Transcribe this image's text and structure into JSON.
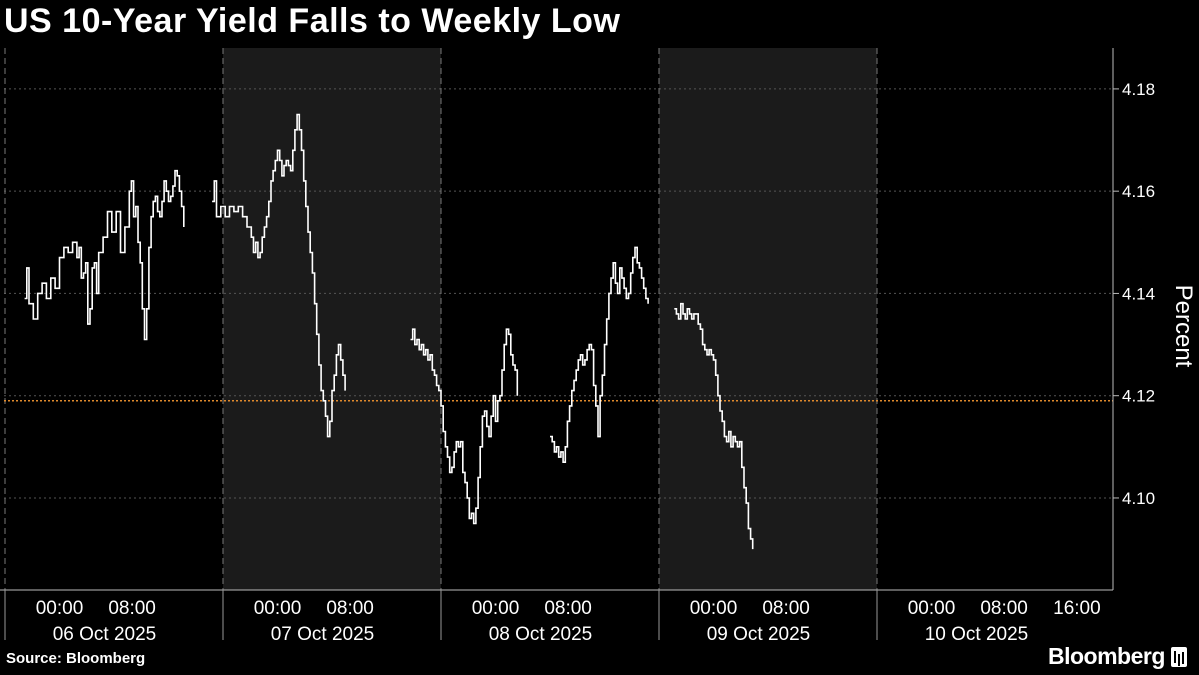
{
  "title": "US 10-Year Yield Falls to Weekly Low",
  "source": "Source: Bloomberg",
  "brand": "Bloomberg",
  "colors": {
    "background": "#000000",
    "shade": "#1b1b1b",
    "line": "#ffffff",
    "reference_line": "#e08a2c",
    "grid": "#555555",
    "text": "#ffffff"
  },
  "chart_data": {
    "type": "line",
    "title": "US 10-Year Yield Falls to Weekly Low",
    "ylabel": "Percent",
    "ylim": [
      4.082,
      4.188
    ],
    "y_ticks": [
      4.1,
      4.12,
      4.14,
      4.16,
      4.18
    ],
    "y_tick_labels": [
      "4.10",
      "4.12",
      "4.14",
      "4.16",
      "4.18"
    ],
    "reference_line": 4.119,
    "grid": true,
    "x_ticks": [
      {
        "day": 0,
        "label": "00:00",
        "date": "06 Oct 2025"
      },
      {
        "day": 0.333,
        "label": "08:00"
      },
      {
        "day": 1,
        "label": "00:00",
        "date": "07 Oct 2025"
      },
      {
        "day": 1.333,
        "label": "08:00"
      },
      {
        "day": 2,
        "label": "00:00",
        "date": "08 Oct 2025"
      },
      {
        "day": 2.333,
        "label": "08:00"
      },
      {
        "day": 3,
        "label": "00:00",
        "date": "09 Oct 2025"
      },
      {
        "day": 3.333,
        "label": "08:00"
      },
      {
        "day": 4,
        "label": "00:00",
        "date": "10 Oct 2025"
      },
      {
        "day": 4.333,
        "label": "08:00"
      },
      {
        "day": 4.667,
        "label": "16:00"
      }
    ],
    "shaded_days": [
      1,
      3
    ],
    "series": [
      {
        "segments": [
          [
            [
              -0.16,
              4.139
            ],
            [
              -0.15,
              4.145
            ],
            [
              -0.14,
              4.138
            ],
            [
              -0.12,
              4.135
            ],
            [
              -0.1,
              4.14
            ],
            [
              -0.08,
              4.142
            ],
            [
              -0.06,
              4.139
            ],
            [
              -0.04,
              4.143
            ],
            [
              -0.02,
              4.141
            ],
            [
              0.0,
              4.147
            ],
            [
              0.02,
              4.149
            ],
            [
              0.04,
              4.148
            ],
            [
              0.06,
              4.15
            ],
            [
              0.08,
              4.147
            ],
            [
              0.09,
              4.149
            ],
            [
              0.1,
              4.143
            ],
            [
              0.11,
              4.144
            ],
            [
              0.12,
              4.146
            ],
            [
              0.13,
              4.134
            ],
            [
              0.14,
              4.137
            ],
            [
              0.15,
              4.145
            ],
            [
              0.16,
              4.146
            ],
            [
              0.17,
              4.14
            ],
            [
              0.18,
              4.148
            ],
            [
              0.2,
              4.151
            ],
            [
              0.22,
              4.156
            ],
            [
              0.24,
              4.152
            ],
            [
              0.26,
              4.156
            ],
            [
              0.28,
              4.148
            ],
            [
              0.3,
              4.153
            ],
            [
              0.32,
              4.16
            ],
            [
              0.33,
              4.162
            ],
            [
              0.34,
              4.155
            ],
            [
              0.35,
              4.157
            ],
            [
              0.36,
              4.15
            ],
            [
              0.37,
              4.146
            ],
            [
              0.38,
              4.137
            ],
            [
              0.39,
              4.131
            ],
            [
              0.4,
              4.137
            ],
            [
              0.41,
              4.149
            ],
            [
              0.42,
              4.155
            ],
            [
              0.43,
              4.158
            ],
            [
              0.44,
              4.159
            ],
            [
              0.45,
              4.156
            ],
            [
              0.46,
              4.155
            ],
            [
              0.47,
              4.158
            ],
            [
              0.48,
              4.162
            ],
            [
              0.49,
              4.16
            ],
            [
              0.5,
              4.158
            ],
            [
              0.51,
              4.159
            ],
            [
              0.52,
              4.161
            ],
            [
              0.53,
              4.164
            ],
            [
              0.54,
              4.163
            ],
            [
              0.55,
              4.16
            ],
            [
              0.56,
              4.157
            ],
            [
              0.57,
              4.153
            ]
          ],
          [
            [
              0.7,
              4.158
            ],
            [
              0.71,
              4.162
            ],
            [
              0.72,
              4.155
            ],
            [
              0.74,
              4.157
            ],
            [
              0.76,
              4.155
            ],
            [
              0.78,
              4.157
            ],
            [
              0.8,
              4.156
            ],
            [
              0.82,
              4.157
            ],
            [
              0.84,
              4.155
            ],
            [
              0.86,
              4.153
            ],
            [
              0.88,
              4.151
            ],
            [
              0.89,
              4.148
            ],
            [
              0.9,
              4.15
            ],
            [
              0.91,
              4.147
            ],
            [
              0.92,
              4.148
            ],
            [
              0.93,
              4.151
            ],
            [
              0.94,
              4.153
            ],
            [
              0.95,
              4.155
            ],
            [
              0.96,
              4.158
            ],
            [
              0.97,
              4.162
            ],
            [
              0.98,
              4.164
            ],
            [
              0.99,
              4.166
            ],
            [
              1.0,
              4.168
            ],
            [
              1.01,
              4.166
            ],
            [
              1.02,
              4.163
            ],
            [
              1.03,
              4.165
            ],
            [
              1.04,
              4.166
            ],
            [
              1.05,
              4.165
            ],
            [
              1.06,
              4.164
            ],
            [
              1.07,
              4.168
            ],
            [
              1.08,
              4.172
            ],
            [
              1.09,
              4.175
            ],
            [
              1.1,
              4.172
            ],
            [
              1.11,
              4.168
            ],
            [
              1.12,
              4.162
            ],
            [
              1.13,
              4.157
            ],
            [
              1.14,
              4.152
            ],
            [
              1.15,
              4.148
            ],
            [
              1.16,
              4.144
            ],
            [
              1.17,
              4.138
            ],
            [
              1.18,
              4.132
            ],
            [
              1.19,
              4.126
            ],
            [
              1.2,
              4.121
            ],
            [
              1.21,
              4.119
            ],
            [
              1.22,
              4.116
            ],
            [
              1.23,
              4.112
            ],
            [
              1.24,
              4.115
            ],
            [
              1.25,
              4.121
            ],
            [
              1.26,
              4.124
            ],
            [
              1.27,
              4.128
            ],
            [
              1.28,
              4.13
            ],
            [
              1.29,
              4.127
            ],
            [
              1.3,
              4.124
            ],
            [
              1.31,
              4.121
            ]
          ],
          [
            [
              1.61,
              4.131
            ],
            [
              1.62,
              4.133
            ],
            [
              1.63,
              4.13
            ],
            [
              1.64,
              4.131
            ],
            [
              1.65,
              4.129
            ],
            [
              1.66,
              4.13
            ],
            [
              1.67,
              4.128
            ],
            [
              1.68,
              4.129
            ],
            [
              1.69,
              4.127
            ],
            [
              1.7,
              4.128
            ],
            [
              1.71,
              4.125
            ],
            [
              1.72,
              4.124
            ],
            [
              1.73,
              4.122
            ],
            [
              1.74,
              4.121
            ],
            [
              1.75,
              4.118
            ],
            [
              1.76,
              4.113
            ],
            [
              1.77,
              4.11
            ],
            [
              1.78,
              4.108
            ],
            [
              1.79,
              4.105
            ],
            [
              1.8,
              4.106
            ],
            [
              1.81,
              4.109
            ],
            [
              1.82,
              4.111
            ],
            [
              1.83,
              4.11
            ],
            [
              1.84,
              4.111
            ],
            [
              1.85,
              4.105
            ],
            [
              1.86,
              4.103
            ],
            [
              1.87,
              4.1
            ],
            [
              1.88,
              4.096
            ],
            [
              1.89,
              4.097
            ],
            [
              1.9,
              4.095
            ],
            [
              1.91,
              4.098
            ],
            [
              1.92,
              4.104
            ],
            [
              1.93,
              4.11
            ],
            [
              1.94,
              4.116
            ],
            [
              1.95,
              4.117
            ],
            [
              1.96,
              4.114
            ],
            [
              1.97,
              4.112
            ],
            [
              1.98,
              4.116
            ],
            [
              1.99,
              4.12
            ],
            [
              2.0,
              4.115
            ],
            [
              2.01,
              4.119
            ],
            [
              2.02,
              4.12
            ],
            [
              2.03,
              4.125
            ],
            [
              2.04,
              4.13
            ],
            [
              2.05,
              4.133
            ],
            [
              2.06,
              4.132
            ],
            [
              2.07,
              4.128
            ],
            [
              2.08,
              4.126
            ],
            [
              2.09,
              4.125
            ],
            [
              2.1,
              4.12
            ]
          ],
          [
            [
              2.25,
              4.112
            ],
            [
              2.26,
              4.111
            ],
            [
              2.27,
              4.109
            ],
            [
              2.28,
              4.11
            ],
            [
              2.29,
              4.108
            ],
            [
              2.3,
              4.109
            ],
            [
              2.31,
              4.107
            ],
            [
              2.32,
              4.11
            ],
            [
              2.33,
              4.115
            ],
            [
              2.34,
              4.118
            ],
            [
              2.35,
              4.121
            ],
            [
              2.36,
              4.123
            ],
            [
              2.37,
              4.125
            ],
            [
              2.38,
              4.127
            ],
            [
              2.39,
              4.128
            ],
            [
              2.4,
              4.126
            ],
            [
              2.41,
              4.127
            ],
            [
              2.42,
              4.129
            ],
            [
              2.43,
              4.13
            ],
            [
              2.44,
              4.129
            ],
            [
              2.45,
              4.122
            ],
            [
              2.46,
              4.118
            ],
            [
              2.47,
              4.112
            ],
            [
              2.48,
              4.12
            ],
            [
              2.49,
              4.124
            ],
            [
              2.5,
              4.13
            ],
            [
              2.51,
              4.135
            ],
            [
              2.52,
              4.14
            ],
            [
              2.53,
              4.143
            ],
            [
              2.54,
              4.146
            ],
            [
              2.55,
              4.142
            ],
            [
              2.56,
              4.14
            ],
            [
              2.57,
              4.145
            ],
            [
              2.58,
              4.143
            ],
            [
              2.59,
              4.141
            ],
            [
              2.6,
              4.139
            ],
            [
              2.61,
              4.14
            ],
            [
              2.62,
              4.144
            ],
            [
              2.63,
              4.147
            ],
            [
              2.64,
              4.149
            ],
            [
              2.65,
              4.146
            ],
            [
              2.66,
              4.145
            ],
            [
              2.67,
              4.143
            ],
            [
              2.68,
              4.141
            ],
            [
              2.69,
              4.139
            ],
            [
              2.7,
              4.138
            ]
          ],
          [
            [
              2.82,
              4.137
            ],
            [
              2.83,
              4.136
            ],
            [
              2.84,
              4.135
            ],
            [
              2.85,
              4.138
            ],
            [
              2.86,
              4.136
            ],
            [
              2.87,
              4.135
            ],
            [
              2.88,
              4.137
            ],
            [
              2.89,
              4.136
            ],
            [
              2.9,
              4.135
            ],
            [
              2.91,
              4.136
            ],
            [
              2.92,
              4.136
            ],
            [
              2.93,
              4.134
            ],
            [
              2.94,
              4.133
            ],
            [
              2.95,
              4.13
            ],
            [
              2.96,
              4.129
            ],
            [
              2.97,
              4.128
            ],
            [
              2.98,
              4.129
            ],
            [
              2.99,
              4.128
            ],
            [
              3.0,
              4.127
            ],
            [
              3.01,
              4.124
            ],
            [
              3.02,
              4.12
            ],
            [
              3.03,
              4.117
            ],
            [
              3.04,
              4.115
            ],
            [
              3.05,
              4.112
            ],
            [
              3.06,
              4.111
            ],
            [
              3.07,
              4.113
            ],
            [
              3.08,
              4.11
            ],
            [
              3.09,
              4.112
            ],
            [
              3.1,
              4.111
            ],
            [
              3.11,
              4.11
            ],
            [
              3.12,
              4.111
            ],
            [
              3.13,
              4.106
            ],
            [
              3.14,
              4.102
            ],
            [
              3.15,
              4.099
            ],
            [
              3.16,
              4.094
            ],
            [
              3.17,
              4.092
            ],
            [
              3.18,
              4.09
            ]
          ]
        ]
      }
    ]
  }
}
